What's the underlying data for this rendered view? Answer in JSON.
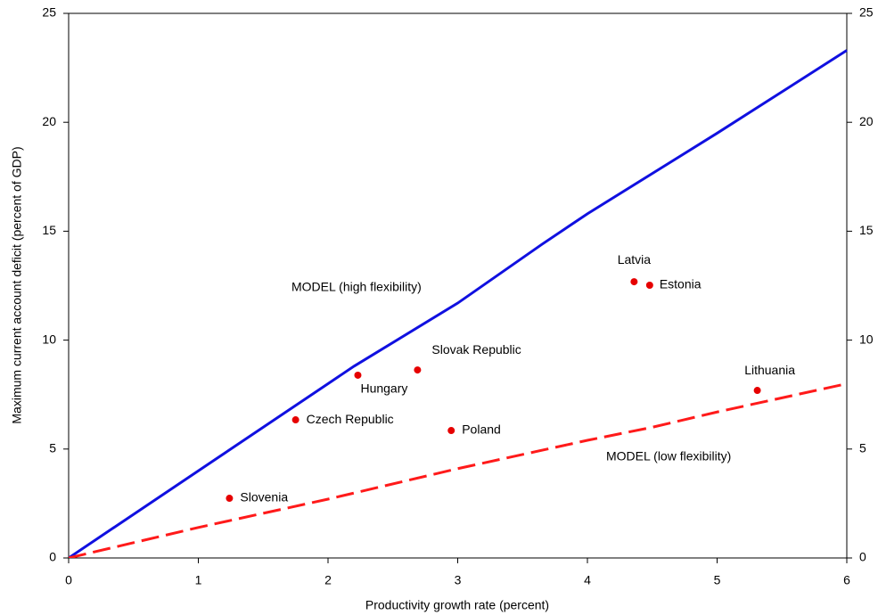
{
  "chart_data": {
    "type": "scatter",
    "x_label": "Productivity growth rate (percent)",
    "y_label": "Maximum current account deficit (percent of GDP)",
    "xlim": [
      0,
      6
    ],
    "xticks": [
      0,
      1,
      2,
      3,
      4,
      5,
      6
    ],
    "ylim": [
      0,
      25
    ],
    "yticks": [
      0,
      5,
      10,
      15,
      20,
      25
    ],
    "y2lim": [
      0,
      25
    ],
    "y2ticks": [
      0,
      5,
      10,
      15,
      20,
      25
    ],
    "lines": [
      {
        "name": "MODEL (high flexibility)",
        "color": "#1010e0",
        "dashed": false,
        "x": [
          0,
          1,
          2,
          2.2,
          3,
          3.65,
          4,
          5,
          6
        ],
        "values": [
          0,
          4,
          8,
          8.8,
          11.7,
          14.4,
          15.8,
          19.5,
          23.3
        ]
      },
      {
        "name": "MODEL (low flexibility)",
        "color": "#ff1a1a",
        "dashed": true,
        "x": [
          0,
          1,
          2,
          3,
          4,
          4.5,
          5,
          6
        ],
        "values": [
          0,
          1.4,
          2.7,
          4.1,
          5.4,
          6,
          6.7,
          8
        ]
      }
    ],
    "points": {
      "color": "#e60000",
      "labels": [
        "Slovenia",
        "Czech Republic",
        "Hungary",
        "Slovak Republic",
        "Poland",
        "Latvia",
        "Estonia",
        "Lithuania"
      ],
      "x": [
        1.24,
        1.75,
        2.23,
        2.69,
        2.95,
        4.36,
        4.48,
        5.31
      ],
      "values": [
        2.74,
        6.34,
        8.39,
        8.63,
        5.85,
        12.68,
        12.52,
        7.69
      ]
    }
  }
}
